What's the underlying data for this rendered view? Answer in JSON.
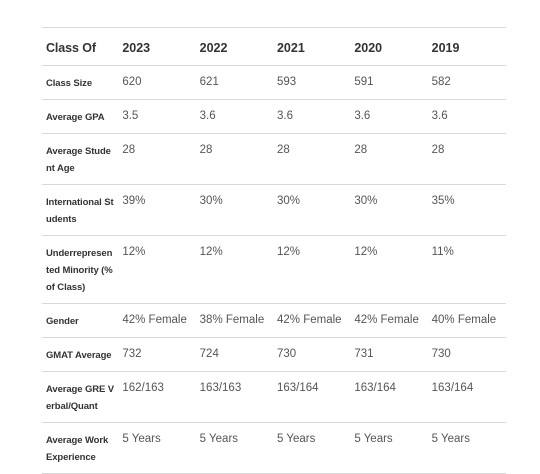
{
  "table": {
    "columns": [
      "Class Of",
      "2023",
      "2022",
      "2021",
      "2020",
      "2019"
    ],
    "rows": [
      {
        "label": "Class Size",
        "values": [
          "620",
          "621",
          "593",
          "591",
          "582"
        ]
      },
      {
        "label": "Average GPA",
        "values": [
          "3.5",
          "3.6",
          "3.6",
          "3.6",
          "3.6"
        ]
      },
      {
        "label": "Average Student Age",
        "values": [
          "28",
          "28",
          "28",
          "28",
          "28"
        ]
      },
      {
        "label": "International Students",
        "values": [
          "39%",
          "30%",
          "30%",
          "30%",
          "35%"
        ]
      },
      {
        "label": "Underrepresented Minority (% of Class)",
        "values": [
          "12%",
          "12%",
          "12%",
          "12%",
          "11%"
        ]
      },
      {
        "label": "Gender",
        "values": [
          "42% Female",
          "38% Female",
          "42% Female",
          "42% Female",
          "40% Female"
        ]
      },
      {
        "label": "GMAT Average",
        "values": [
          "732",
          "724",
          "730",
          "731",
          "730"
        ]
      },
      {
        "label": "Average GRE Verbal/Quant",
        "values": [
          "162/163",
          "163/163",
          "163/164",
          "163/164",
          "163/164"
        ]
      },
      {
        "label": "Average Work Experience",
        "values": [
          "5 Years",
          "5 Years",
          "5 Years",
          "5 Years",
          "5 Years"
        ]
      }
    ]
  }
}
